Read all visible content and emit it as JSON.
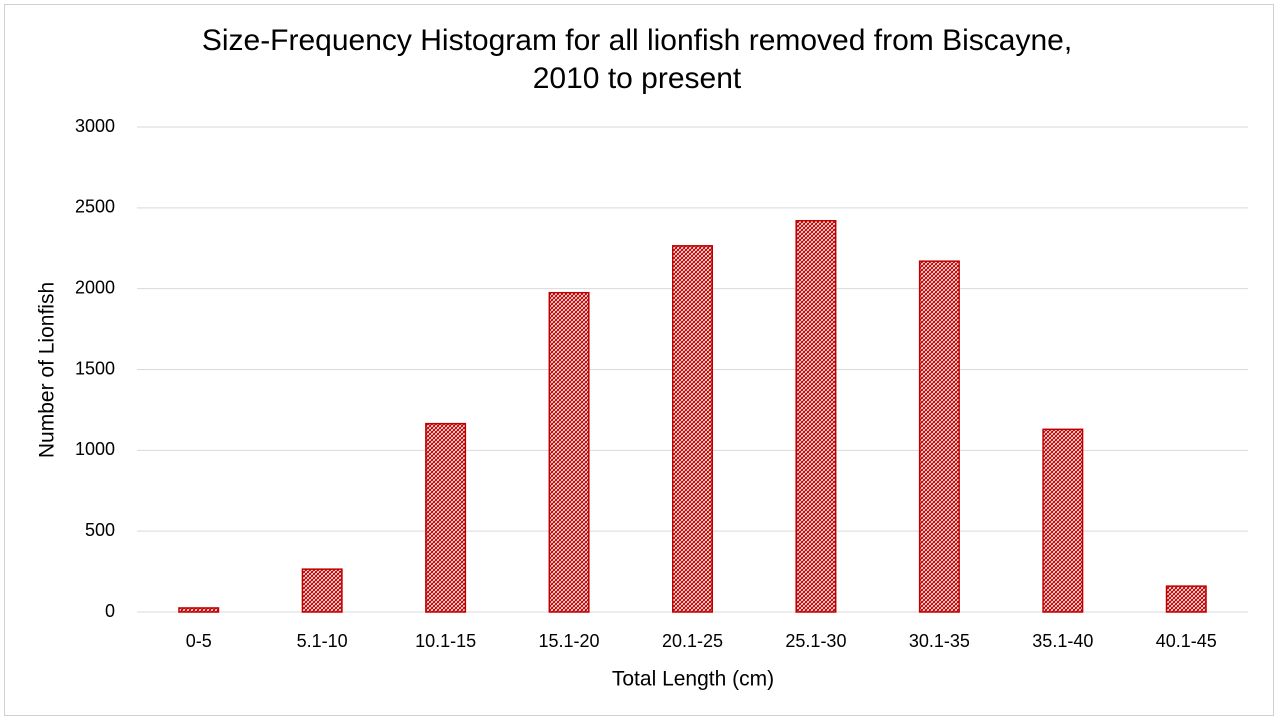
{
  "chart_data": {
    "type": "bar",
    "title": [
      "Size-Frequency Histogram for all lionfish removed from Biscayne,",
      "2010 to present"
    ],
    "x_label": "Total Length (cm)",
    "y_label": "Number of Lionfish",
    "categories": [
      "0-5",
      "5.1-10",
      "10.1-15",
      "15.1-20",
      "20.1-25",
      "25.1-30",
      "30.1-35",
      "35.1-40",
      "40.1-45"
    ],
    "values": [
      25,
      265,
      1165,
      1975,
      2265,
      2420,
      2170,
      1130,
      160
    ],
    "color": "#c00000",
    "ylim": [
      0,
      3000
    ],
    "yticks": [
      0,
      500,
      1000,
      1500,
      2000,
      2500,
      3000
    ],
    "grid": true
  }
}
